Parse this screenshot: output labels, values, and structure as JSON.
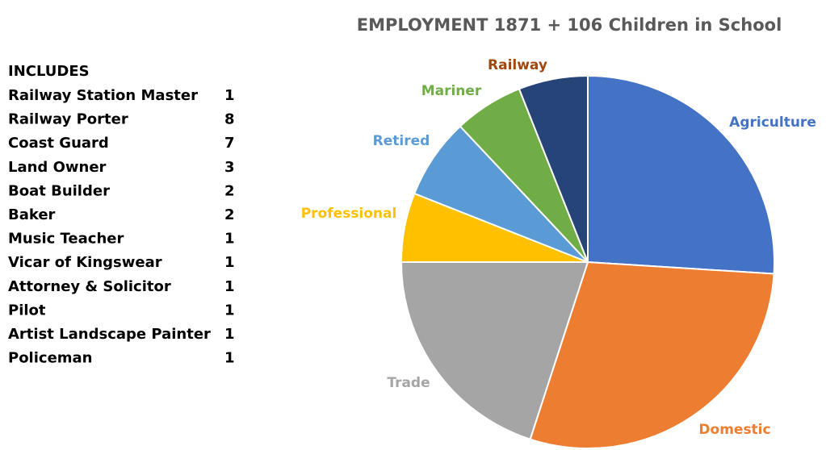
{
  "chart_data": {
    "type": "pie",
    "title": "EMPLOYMENT 1871 + 106 Children in School",
    "categories": [
      "Agriculture",
      "Domestic",
      "Trade",
      "Professional",
      "Retired",
      "Mariner",
      "Railway"
    ],
    "values": [
      26,
      29,
      20,
      6,
      7,
      6,
      6
    ],
    "colors": [
      "#4472c4",
      "#ed7d31",
      "#a5a5a5",
      "#ffc000",
      "#5b9bd5",
      "#70ad47",
      "#264478"
    ],
    "label_colors": [
      "#4472c4",
      "#ed7d31",
      "#a5a5a5",
      "#ffc000",
      "#5b9bd5",
      "#70ad47",
      "#9e480e"
    ]
  },
  "includes": {
    "title": "INCLUDES",
    "rows": [
      [
        "Railway Station Master",
        1
      ],
      [
        "Railway Porter",
        8
      ],
      [
        "Coast Guard",
        7
      ],
      [
        "Land Owner",
        3
      ],
      [
        "Boat Builder",
        2
      ],
      [
        "Baker",
        2
      ],
      [
        "Music Teacher",
        1
      ],
      [
        "Vicar of Kingswear",
        1
      ],
      [
        "Attorney & Solicitor",
        1
      ],
      [
        "Pilot",
        1
      ],
      [
        "Artist Landscape Painter",
        1
      ],
      [
        "Policeman",
        1
      ]
    ]
  }
}
